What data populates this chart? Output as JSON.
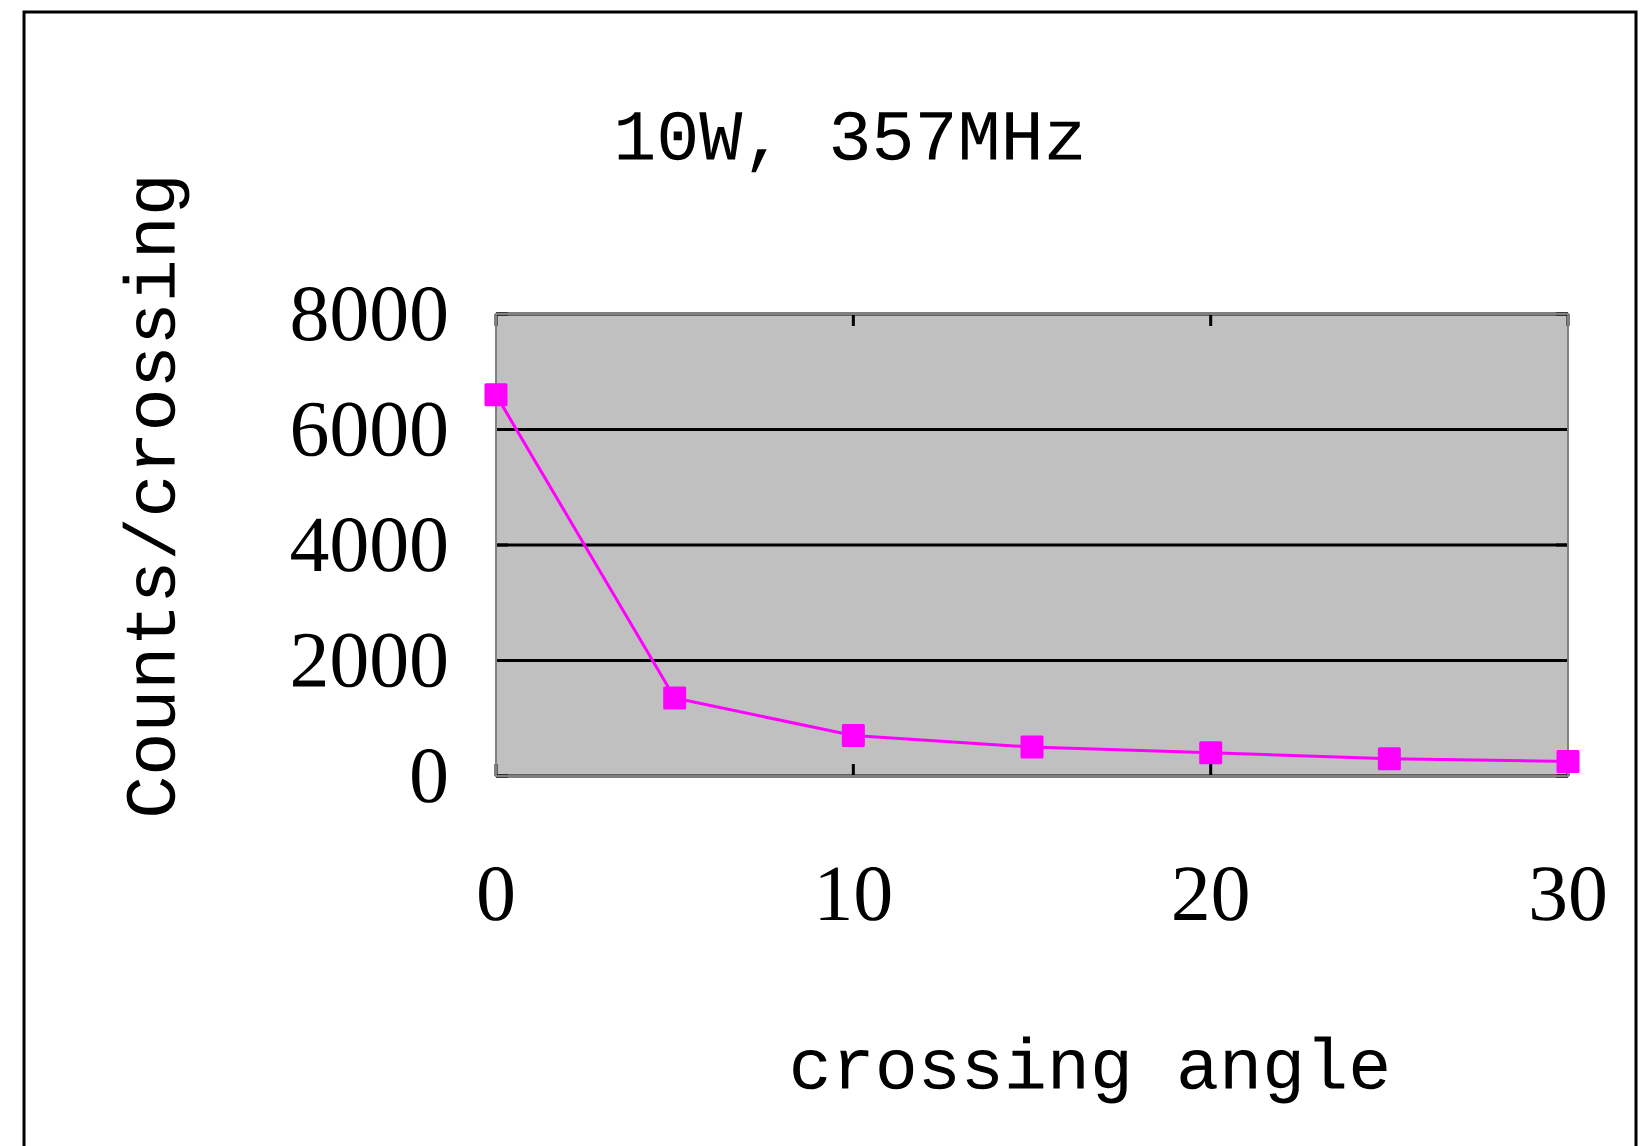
{
  "chart_data": {
    "type": "line",
    "title": "10W, 357MHz",
    "xlabel": "crossing angle",
    "ylabel": "Counts/crossing",
    "x": [
      0,
      5,
      10,
      15,
      20,
      25,
      30
    ],
    "series": [
      {
        "color": "#ff00ff",
        "values": [
          6600,
          1350,
          700,
          500,
          400,
          300,
          250
        ]
      }
    ],
    "xlim": [
      0,
      30
    ],
    "xticks": [
      0,
      10,
      20,
      30
    ],
    "ylim": [
      0,
      8000
    ],
    "yticks": [
      0,
      2000,
      4000,
      6000,
      8000
    ],
    "grid": "y",
    "marker": "square",
    "line_style": "solid"
  }
}
